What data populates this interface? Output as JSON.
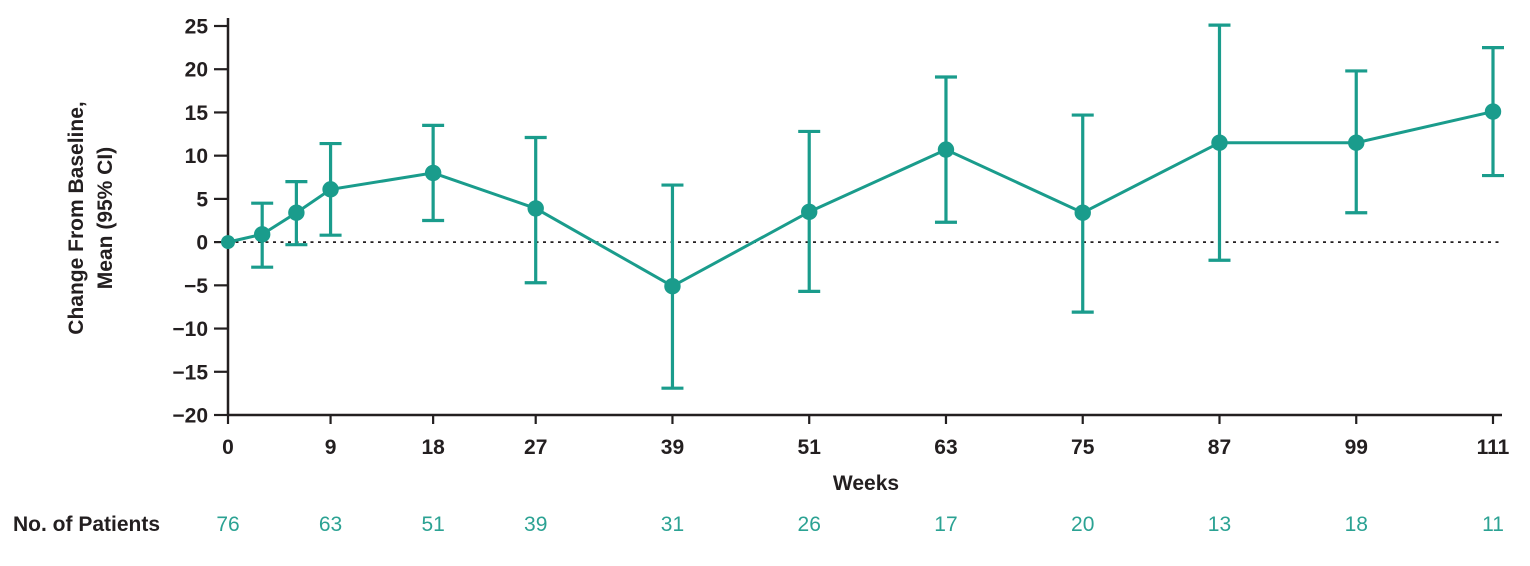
{
  "figure": {
    "y_axis_label": [
      "Change From Baseline,",
      "Mean (95% CI)"
    ],
    "x_axis_label": "Weeks",
    "patients_label": "No. of Patients"
  },
  "colors": {
    "series": "#1A9C8C",
    "patient_numbers": "#2BA293",
    "axis_text": "#231F20"
  },
  "chart_data": {
    "type": "line",
    "title": "",
    "xlabel": "Weeks",
    "ylabel": "Change From Baseline, Mean (95% CI)",
    "xlim": [
      0,
      111
    ],
    "ylim": [
      -20,
      25
    ],
    "x_ticks": [
      0,
      9,
      18,
      27,
      39,
      51,
      63,
      75,
      87,
      99,
      111
    ],
    "y_ticks": [
      25,
      20,
      15,
      10,
      5,
      0,
      -5,
      -10,
      -15,
      -20
    ],
    "reference_line_y": 0,
    "grid": false,
    "legend": "none",
    "series": [
      {
        "name": "Mean change from baseline (95% CI)",
        "marker": "circle",
        "x": [
          0,
          3,
          6,
          9,
          18,
          27,
          39,
          51,
          63,
          75,
          87,
          99,
          111
        ],
        "y": [
          0.0,
          0.9,
          3.4,
          6.1,
          8.0,
          3.9,
          -5.1,
          3.5,
          10.7,
          3.4,
          11.5,
          11.5,
          15.1
        ],
        "ci_low": [
          null,
          -2.9,
          -0.3,
          0.8,
          2.5,
          -4.7,
          -16.9,
          -5.7,
          2.3,
          -8.1,
          -2.1,
          3.4,
          7.7
        ],
        "ci_high": [
          null,
          4.5,
          7.0,
          11.4,
          13.5,
          12.1,
          6.6,
          12.8,
          19.1,
          14.7,
          25.1,
          19.8,
          22.5
        ]
      }
    ],
    "patients_row": {
      "label": "No. of Patients",
      "weeks": [
        0,
        9,
        18,
        27,
        39,
        51,
        63,
        75,
        87,
        99,
        111
      ],
      "counts": [
        76,
        63,
        51,
        39,
        31,
        26,
        17,
        20,
        13,
        18,
        11
      ]
    }
  }
}
